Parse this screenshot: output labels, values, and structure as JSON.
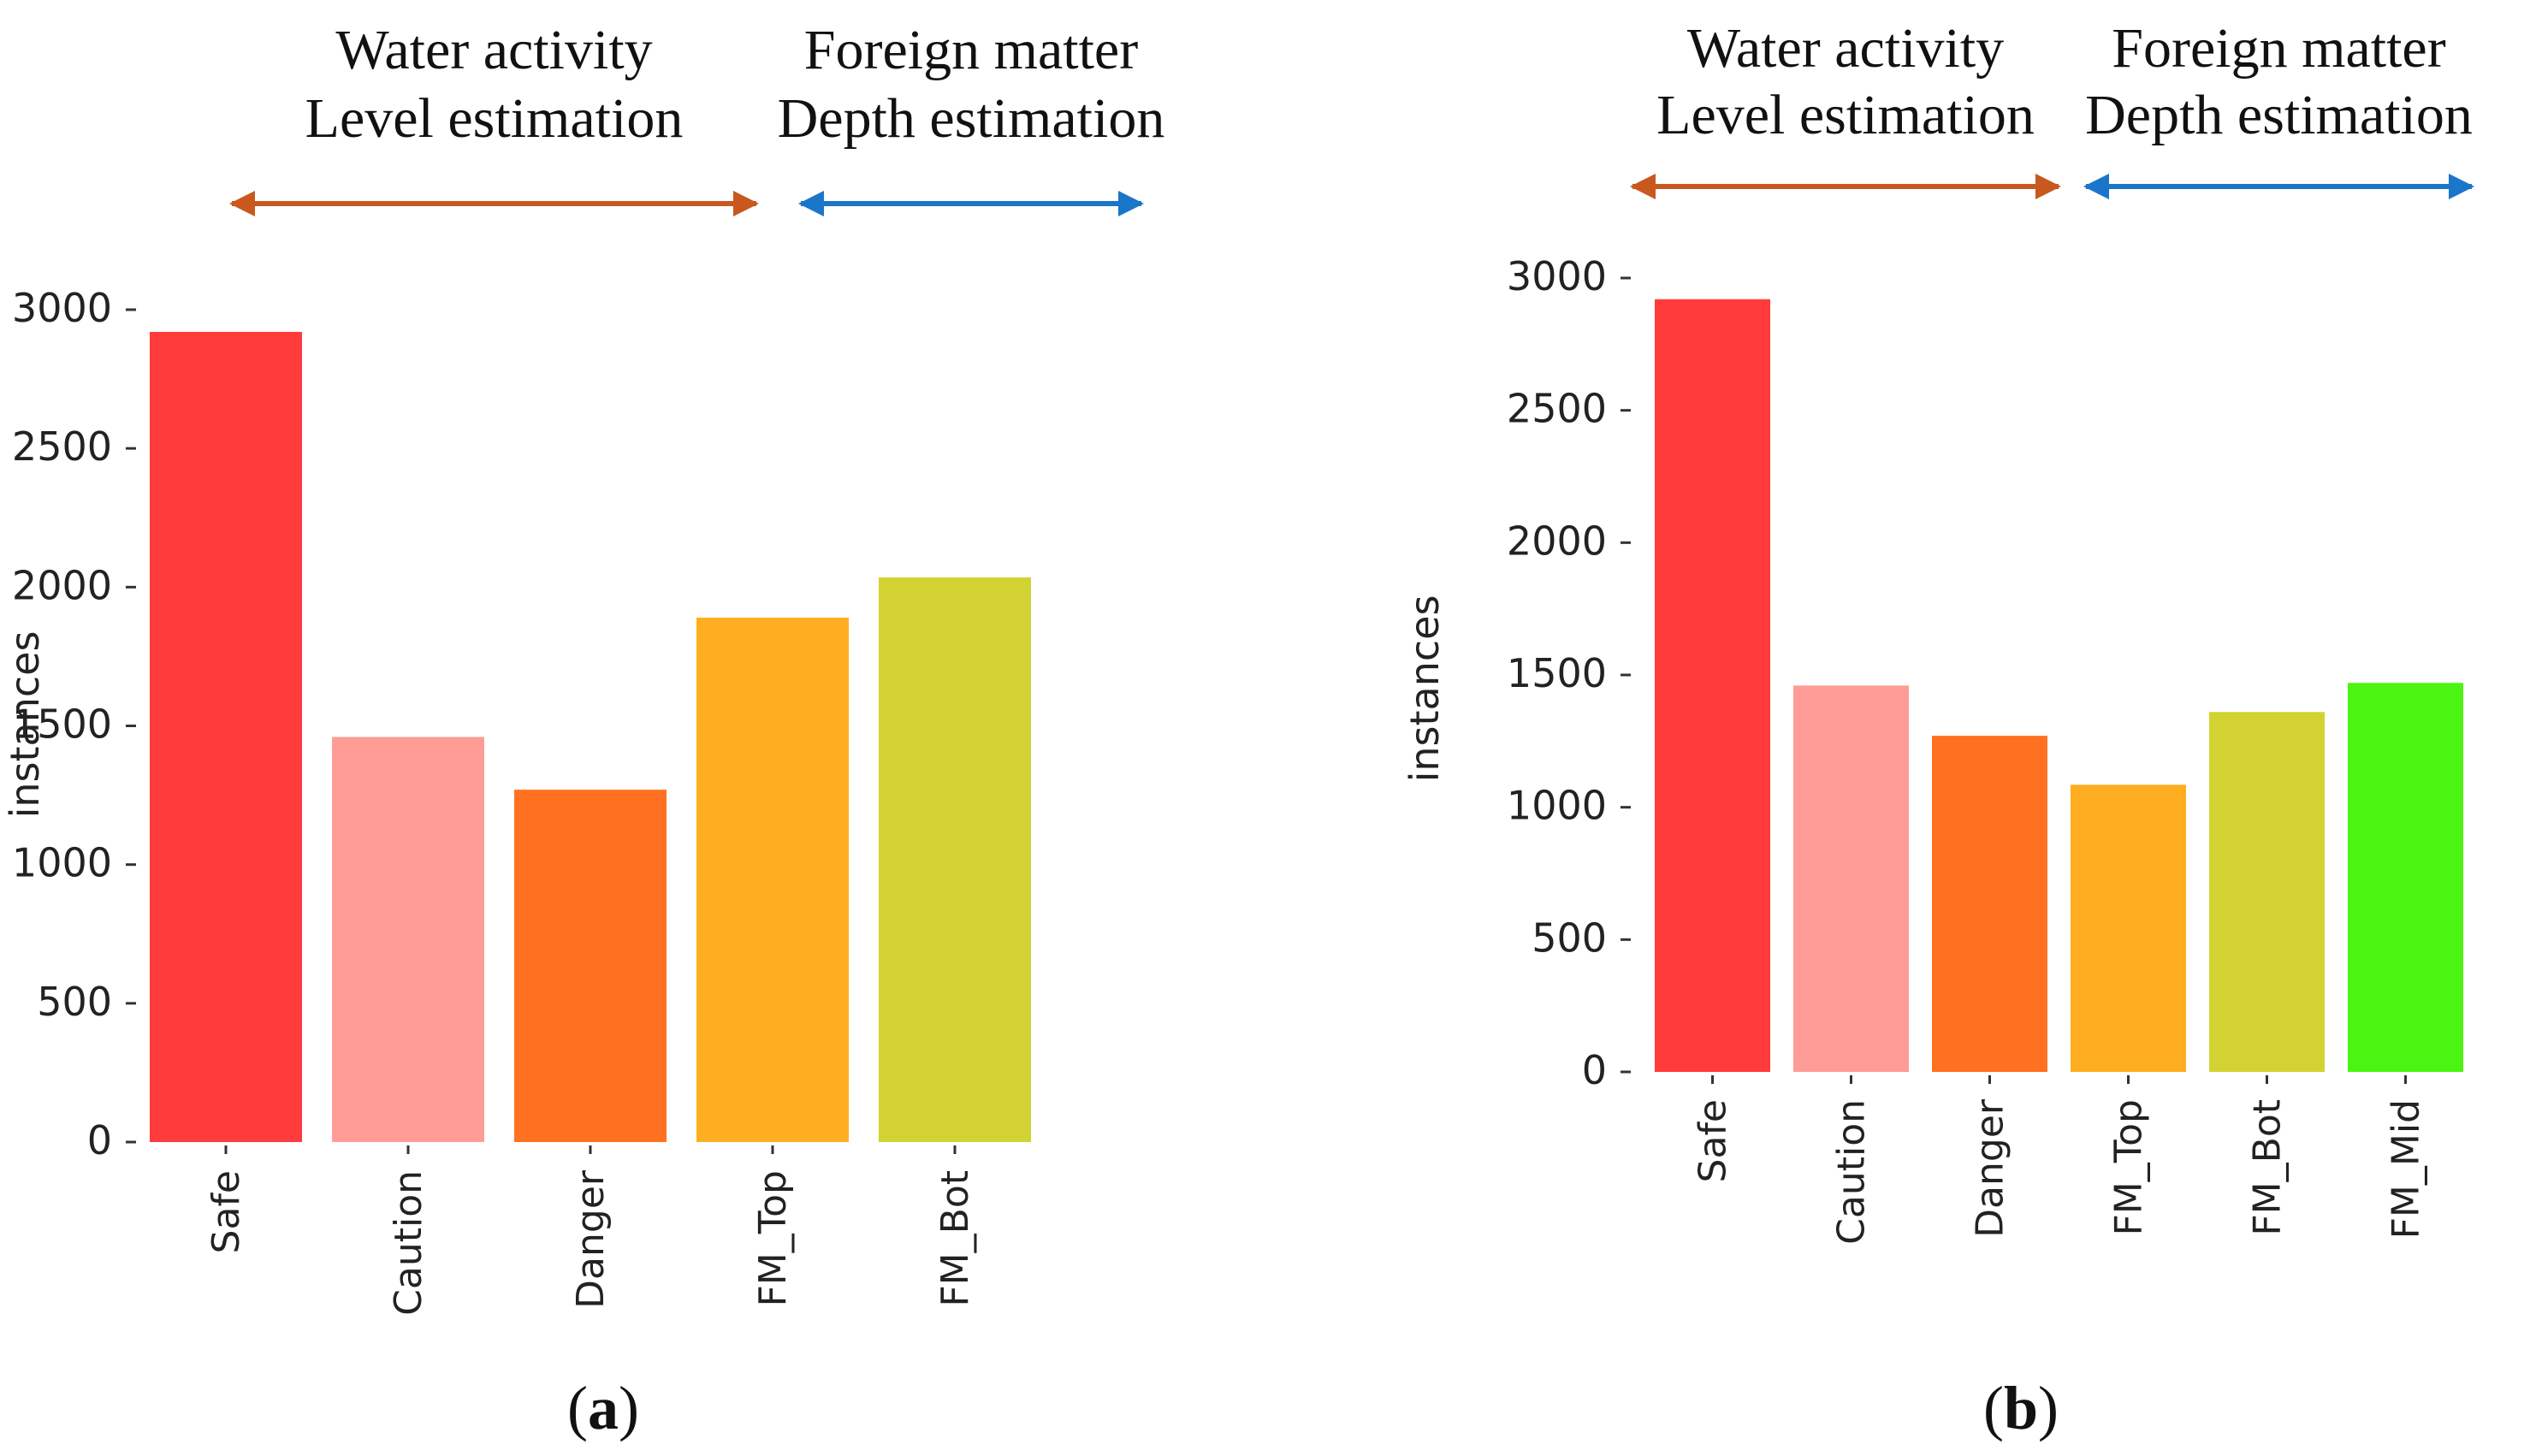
{
  "chart_data": [
    {
      "type": "bar",
      "panel_label": "a",
      "categories": [
        "Safe",
        "Caution",
        "Danger",
        "FM_Top",
        "FM_Bot"
      ],
      "values": [
        2920,
        1460,
        1270,
        1890,
        2035
      ],
      "colors": [
        "#ff3b3b",
        "#ff9c96",
        "#ff7120",
        "#ffae21",
        "#d2d332"
      ],
      "ylabel": "instances",
      "xlabel": "",
      "ylim": [
        0,
        3000
      ],
      "yticks": [
        0,
        500,
        1000,
        1500,
        2000,
        2500,
        3000
      ],
      "grid": false,
      "groups": [
        {
          "line1": "Water activity",
          "line2": "Level estimation",
          "color": "#c8581e",
          "categories": [
            "Safe",
            "Caution",
            "Danger"
          ]
        },
        {
          "line1": "Foreign matter",
          "line2": "Depth estimation",
          "color": "#1a76c8",
          "categories": [
            "FM_Top",
            "FM_Bot"
          ]
        }
      ]
    },
    {
      "type": "bar",
      "panel_label": "b",
      "categories": [
        "Safe",
        "Caution",
        "Danger",
        "FM_Top",
        "FM_Bot",
        "FM_Mid"
      ],
      "values": [
        2920,
        1460,
        1270,
        1085,
        1360,
        1470
      ],
      "colors": [
        "#ff3b3b",
        "#ff9c96",
        "#ff7120",
        "#ffae21",
        "#d2d332",
        "#4cf411"
      ],
      "ylabel": "instances",
      "xlabel": "",
      "ylim": [
        0,
        3000
      ],
      "yticks": [
        0,
        500,
        1000,
        1500,
        2000,
        2500,
        3000
      ],
      "grid": false,
      "groups": [
        {
          "line1": "Water activity",
          "line2": "Level estimation",
          "color": "#c8581e",
          "categories": [
            "Safe",
            "Caution",
            "Danger"
          ]
        },
        {
          "line1": "Foreign matter",
          "line2": "Depth estimation",
          "color": "#1a76c8",
          "categories": [
            "FM_Top",
            "FM_Bot",
            "FM_Mid"
          ]
        }
      ]
    }
  ]
}
